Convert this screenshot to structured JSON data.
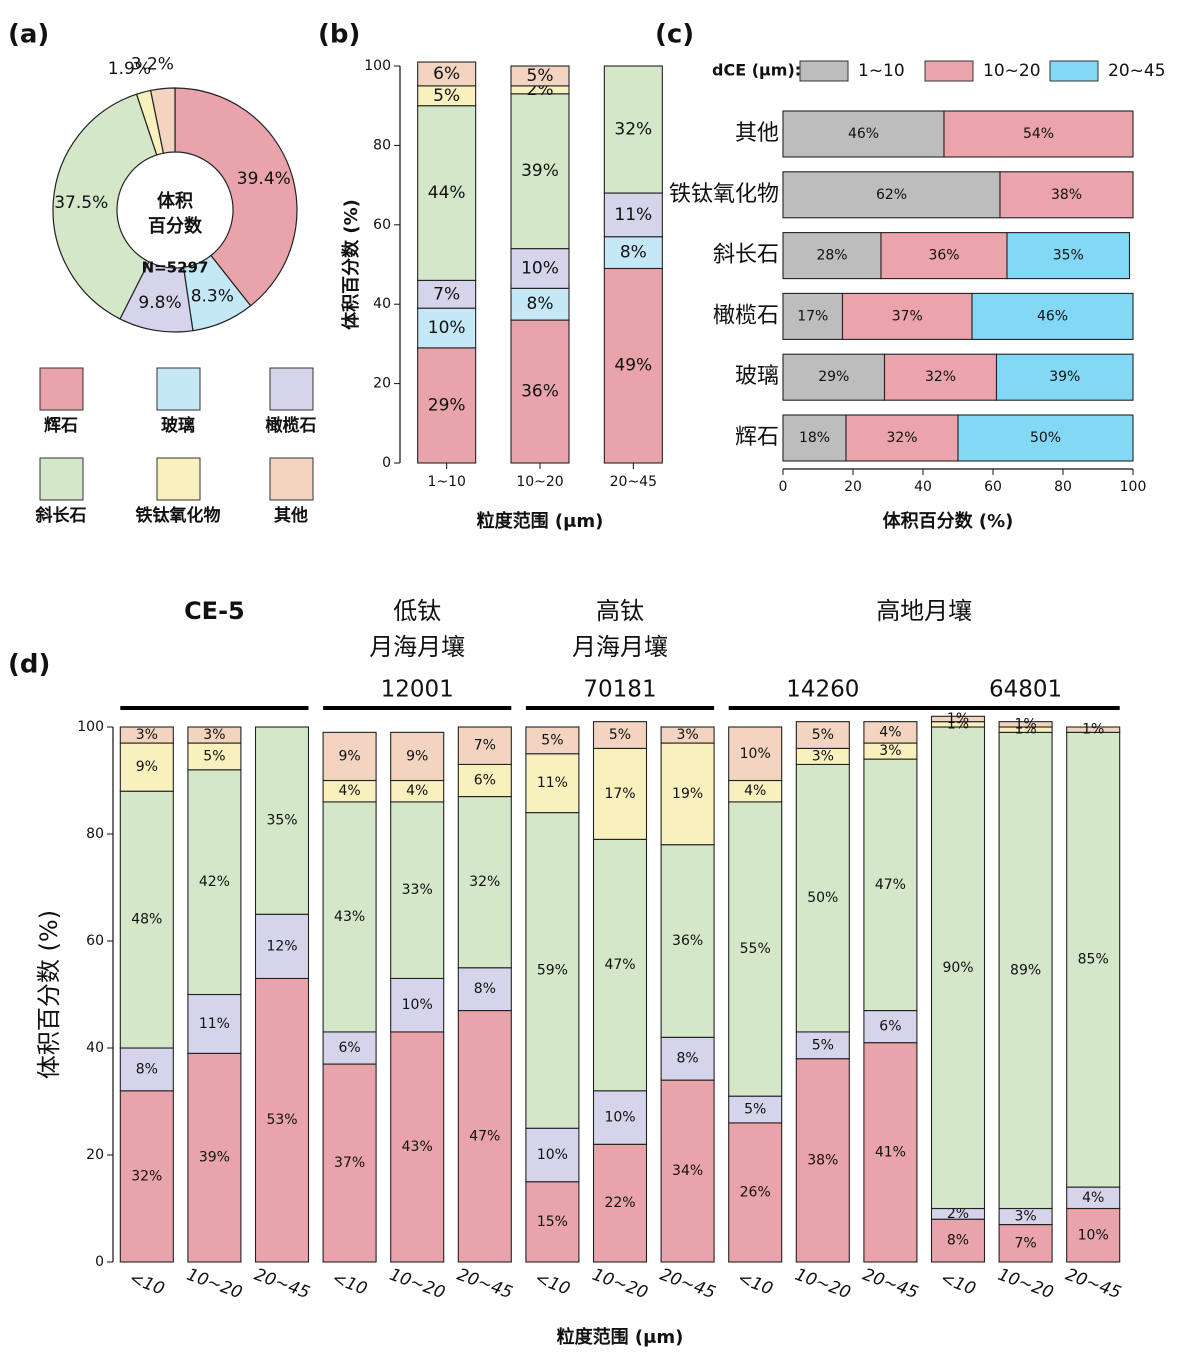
{
  "chart_data": [
    {
      "type": "pie",
      "donut": true,
      "panel_label": "(a)",
      "categories": [
        "辉石",
        "玻璃",
        "橄榄石",
        "斜长石",
        "铁钛氧化物",
        "其他"
      ],
      "values": [
        39.4,
        8.3,
        9.8,
        37.5,
        1.9,
        3.2
      ],
      "value_labels": [
        "39.4%",
        "8.3%",
        "9.8%",
        "37.5%",
        "1.9%",
        "3.2%"
      ],
      "colors": [
        "#e9a3ab",
        "#c4e8f6",
        "#d6d4ea",
        "#d4e7c9",
        "#f9f1bd",
        "#f2d4c0"
      ],
      "center_label": [
        "体积",
        "百分数"
      ],
      "n_label": "N=5297"
    },
    {
      "type": "bar",
      "stacked": true,
      "panel_label": "(b)",
      "categories": [
        "1~10",
        "10~20",
        "20~45"
      ],
      "series": [
        {
          "color": "#e9a3ab",
          "values": [
            29,
            36,
            49
          ],
          "value_labels": [
            "29%",
            "36%",
            "49%"
          ]
        },
        {
          "color": "#c4e8f6",
          "values": [
            10,
            8,
            8
          ],
          "value_labels": [
            "10%",
            "8%",
            "8%"
          ]
        },
        {
          "color": "#d6d4ea",
          "values": [
            7,
            10,
            11
          ],
          "value_labels": [
            "7%",
            "10%",
            "11%"
          ]
        },
        {
          "color": "#d4e7c9",
          "values": [
            44,
            39,
            32
          ],
          "value_labels": [
            "44%",
            "39%",
            "32%"
          ]
        },
        {
          "color": "#f9f1bd",
          "values": [
            5,
            2,
            null
          ],
          "value_labels": [
            "5%",
            "2%",
            null
          ]
        },
        {
          "color": "#f2d4c0",
          "values": [
            6,
            5,
            null
          ],
          "value_labels": [
            "6%",
            "5%",
            null
          ]
        }
      ],
      "ylim": [
        0,
        100
      ],
      "yticks": [
        0,
        20,
        40,
        60,
        80,
        100
      ],
      "ylabel": "体积百分数 (%)",
      "xlabel": "粒度范围 (μm)"
    },
    {
      "type": "barh",
      "stacked": true,
      "panel_label": "(c)",
      "categories": [
        "其他",
        "铁钛氧化物",
        "斜长石",
        "橄榄石",
        "玻璃",
        "辉石"
      ],
      "legend_title": "dCE (μm):",
      "series": [
        {
          "name": "1~10",
          "color": "#bdbdbd",
          "values": [
            46,
            62,
            28,
            17,
            29,
            18
          ],
          "value_labels": [
            "46%",
            "62%",
            "28%",
            "17%",
            "29%",
            "18%"
          ]
        },
        {
          "name": "10~20",
          "color": "#eba4ab",
          "values": [
            54,
            38,
            36,
            37,
            32,
            32
          ],
          "value_labels": [
            "54%",
            "38%",
            "36%",
            "37%",
            "32%",
            "32%"
          ]
        },
        {
          "name": "20~45",
          "color": "#82d8f5",
          "values": [
            null,
            null,
            35,
            46,
            39,
            50
          ],
          "value_labels": [
            null,
            null,
            "35%",
            "46%",
            "39%",
            "50%"
          ]
        }
      ],
      "xlim": [
        0,
        100
      ],
      "xticks": [
        0,
        20,
        40,
        60,
        80,
        100
      ],
      "xlabel": "体积百分数 (%)"
    },
    {
      "type": "bar",
      "stacked": true,
      "panel_label": "(d)",
      "groups": [
        {
          "label": [
            "CE-5"
          ],
          "samples": [
            {
              "categories": [
                "<10",
                "10~20",
                "20~45"
              ]
            }
          ]
        },
        {
          "label": [
            "低钛",
            "月海月壤"
          ],
          "samples": [
            {
              "label": "12001",
              "categories": [
                "<10",
                "10~20",
                "20~45"
              ]
            }
          ]
        },
        {
          "label": [
            "高钛",
            "月海月壤"
          ],
          "samples": [
            {
              "label": "70181",
              "categories": [
                "<10",
                "10~20",
                "20~45"
              ]
            }
          ]
        },
        {
          "label": [
            "高地月壤"
          ],
          "samples": [
            {
              "label": "14260",
              "categories": [
                "<10",
                "10~20",
                "20~45"
              ]
            },
            {
              "label": "64801",
              "categories": [
                "<10",
                "10~20",
                "20~45"
              ]
            }
          ]
        }
      ],
      "series": [
        {
          "color": "#e9a3ab",
          "values": [
            32,
            39,
            53,
            37,
            43,
            47,
            15,
            22,
            34,
            26,
            38,
            41,
            8,
            7,
            10
          ],
          "value_labels": [
            "32%",
            "39%",
            "53%",
            "37%",
            "43%",
            "47%",
            "15%",
            "22%",
            "34%",
            "26%",
            "38%",
            "41%",
            "8%",
            "7%",
            "10%"
          ]
        },
        {
          "color": "#d6d4ea",
          "values": [
            8,
            11,
            12,
            6,
            10,
            8,
            10,
            10,
            8,
            5,
            5,
            6,
            2,
            3,
            4
          ],
          "value_labels": [
            "8%",
            "11%",
            "12%",
            "6%",
            "10%",
            "8%",
            "10%",
            "10%",
            "8%",
            "5%",
            "5%",
            "6%",
            "2%",
            "3%",
            "4%"
          ]
        },
        {
          "color": "#d4e7c9",
          "values": [
            48,
            42,
            35,
            43,
            33,
            32,
            59,
            47,
            36,
            55,
            50,
            47,
            90,
            89,
            85
          ],
          "value_labels": [
            "48%",
            "42%",
            "35%",
            "43%",
            "33%",
            "32%",
            "59%",
            "47%",
            "36%",
            "55%",
            "50%",
            "47%",
            "90%",
            "89%",
            "85%"
          ]
        },
        {
          "color": "#f9f1bd",
          "values": [
            9,
            5,
            null,
            4,
            4,
            6,
            11,
            17,
            19,
            4,
            3,
            3,
            1,
            1,
            null
          ],
          "value_labels": [
            "9%",
            "5%",
            null,
            "4%",
            "4%",
            "6%",
            "11%",
            "17%",
            "19%",
            "4%",
            "3%",
            "3%",
            "1%",
            "1%",
            null
          ]
        },
        {
          "color": "#f2d4c0",
          "values": [
            3,
            3,
            null,
            9,
            9,
            7,
            5,
            5,
            3,
            10,
            5,
            4,
            1,
            1,
            1
          ],
          "value_labels": [
            "3%",
            "3%",
            null,
            "9%",
            "9%",
            "7%",
            "5%",
            "5%",
            "3%",
            "10%",
            "5%",
            "4%",
            "1%",
            "1%",
            "1%"
          ]
        }
      ],
      "ylim": [
        0,
        100
      ],
      "yticks": [
        0,
        20,
        40,
        60,
        80,
        100
      ],
      "ylabel": "体积百分数 (%)",
      "xlabel": "粒度范围 (μm)"
    }
  ]
}
